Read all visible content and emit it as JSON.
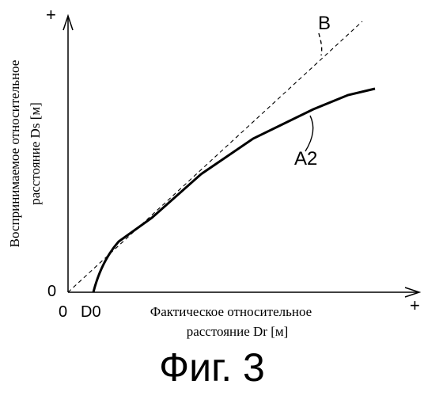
{
  "chart_data": {
    "type": "line",
    "xlabel": [
      "Фактическое относительное",
      "расстояние Dr [м]"
    ],
    "ylabel": [
      "Воспринимаемое относительное",
      "расстояние Ds [м]"
    ],
    "x_axis_plus": "+",
    "y_axis_plus": "+",
    "x_ticks": [
      "0",
      "D0"
    ],
    "y_ticks": [
      "0"
    ],
    "series": [
      {
        "name": "A2",
        "style": "solid-thick"
      },
      {
        "name": "B",
        "style": "dashed"
      }
    ]
  },
  "figure_caption": "Фиг. 3"
}
